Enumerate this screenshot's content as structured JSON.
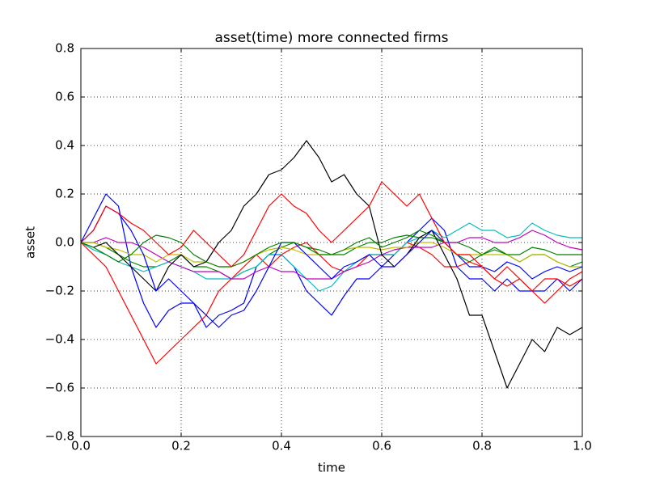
{
  "chart_data": {
    "type": "line",
    "title": "asset(time) more connected firms",
    "x_label": "time",
    "y_label": "asset",
    "x": [
      0,
      0.025,
      0.05,
      0.075,
      0.1,
      0.125,
      0.15,
      0.175,
      0.2,
      0.225,
      0.25,
      0.275,
      0.3,
      0.325,
      0.35,
      0.375,
      0.4,
      0.425,
      0.45,
      0.475,
      0.5,
      0.525,
      0.55,
      0.575,
      0.6,
      0.625,
      0.65,
      0.675,
      0.7,
      0.725,
      0.75,
      0.775,
      0.8,
      0.825,
      0.85,
      0.875,
      0.9,
      0.925,
      0.95,
      0.975,
      1
    ],
    "series": [
      {
        "color": "#0000ff",
        "values": [
          0,
          0.1,
          0.2,
          0.15,
          -0.1,
          -0.25,
          -0.35,
          -0.28,
          -0.25,
          -0.25,
          -0.35,
          -0.3,
          -0.28,
          -0.25,
          -0.1,
          -0.05,
          -0.05,
          -0.1,
          -0.2,
          -0.25,
          -0.3,
          -0.22,
          -0.15,
          -0.15,
          -0.1,
          -0.05,
          0,
          0.05,
          0.1,
          0.05,
          -0.1,
          -0.15,
          -0.15,
          -0.2,
          -0.15,
          -0.2,
          -0.2,
          -0.2,
          -0.15,
          -0.2,
          -0.15
        ]
      },
      {
        "color": "#008000",
        "values": [
          0,
          0,
          -0.02,
          -0.05,
          -0.08,
          -0.1,
          -0.1,
          -0.08,
          -0.05,
          -0.1,
          -0.1,
          -0.12,
          -0.15,
          -0.12,
          -0.1,
          -0.05,
          -0.02,
          0,
          -0.02,
          -0.03,
          -0.05,
          -0.05,
          -0.02,
          0,
          0,
          0.02,
          0.03,
          0.02,
          0.02,
          0,
          0,
          -0.02,
          -0.05,
          -0.03,
          -0.05,
          -0.08,
          -0.05,
          -0.05,
          -0.08,
          -0.1,
          -0.08
        ]
      },
      {
        "color": "#ff0000",
        "values": [
          0,
          -0.05,
          -0.1,
          -0.2,
          -0.3,
          -0.4,
          -0.5,
          -0.45,
          -0.4,
          -0.35,
          -0.3,
          -0.2,
          -0.15,
          -0.1,
          -0.05,
          -0.1,
          -0.05,
          -0.02,
          0,
          -0.05,
          -0.1,
          -0.12,
          -0.1,
          -0.05,
          -0.05,
          -0.05,
          0,
          -0.02,
          -0.05,
          -0.1,
          -0.1,
          -0.08,
          -0.1,
          -0.15,
          -0.18,
          -0.15,
          -0.2,
          -0.25,
          -0.2,
          -0.15,
          -0.12
        ]
      },
      {
        "color": "#00bfbf",
        "values": [
          0,
          -0.03,
          -0.05,
          -0.08,
          -0.1,
          -0.12,
          -0.1,
          -0.08,
          -0.1,
          -0.12,
          -0.15,
          -0.15,
          -0.15,
          -0.12,
          -0.1,
          -0.05,
          -0.05,
          -0.1,
          -0.15,
          -0.2,
          -0.18,
          -0.12,
          -0.08,
          -0.05,
          -0.05,
          -0.05,
          0,
          0.02,
          0.05,
          0.02,
          0.05,
          0.08,
          0.05,
          0.05,
          0.02,
          0.03,
          0.08,
          0.05,
          0.03,
          0.02,
          0.02
        ]
      },
      {
        "color": "#bf00bf",
        "values": [
          0,
          0,
          0.02,
          0,
          0,
          -0.02,
          -0.05,
          -0.08,
          -0.1,
          -0.12,
          -0.12,
          -0.12,
          -0.15,
          -0.15,
          -0.12,
          -0.1,
          -0.12,
          -0.12,
          -0.15,
          -0.15,
          -0.15,
          -0.12,
          -0.1,
          -0.08,
          -0.05,
          -0.03,
          -0.02,
          -0.02,
          -0.02,
          0,
          0,
          0.02,
          0.02,
          0,
          0,
          0.02,
          0.05,
          0.03,
          0,
          -0.02,
          -0.03
        ]
      },
      {
        "color": "#bfbf00",
        "values": [
          0,
          0,
          -0.02,
          -0.03,
          -0.05,
          -0.05,
          -0.08,
          -0.05,
          -0.05,
          -0.08,
          -0.08,
          -0.1,
          -0.1,
          -0.08,
          -0.05,
          -0.03,
          -0.02,
          -0.03,
          -0.05,
          -0.05,
          -0.05,
          -0.03,
          -0.02,
          -0.02,
          -0.03,
          -0.02,
          -0.02,
          0,
          0,
          -0.02,
          -0.05,
          -0.05,
          -0.05,
          -0.05,
          -0.05,
          -0.08,
          -0.05,
          -0.05,
          -0.08,
          -0.1,
          -0.1
        ]
      },
      {
        "color": "#000000",
        "values": [
          0,
          -0.02,
          0,
          -0.05,
          -0.1,
          -0.15,
          -0.2,
          -0.1,
          -0.05,
          -0.1,
          -0.08,
          0,
          0.05,
          0.15,
          0.2,
          0.28,
          0.3,
          0.35,
          0.42,
          0.35,
          0.25,
          0.28,
          0.2,
          0.15,
          -0.05,
          -0.1,
          -0.05,
          0.02,
          0.05,
          -0.05,
          -0.15,
          -0.3,
          -0.3,
          -0.45,
          -0.6,
          -0.5,
          -0.4,
          -0.45,
          -0.35,
          -0.38,
          -0.35
        ]
      },
      {
        "color": "#0000ff",
        "values": [
          0,
          0.05,
          0.15,
          0.12,
          0.05,
          -0.05,
          -0.2,
          -0.15,
          -0.2,
          -0.25,
          -0.3,
          -0.35,
          -0.3,
          -0.28,
          -0.2,
          -0.1,
          0,
          0,
          -0.05,
          -0.1,
          -0.15,
          -0.1,
          -0.08,
          -0.05,
          -0.1,
          -0.1,
          -0.05,
          0,
          0.05,
          0,
          -0.05,
          -0.1,
          -0.1,
          -0.12,
          -0.08,
          -0.1,
          -0.15,
          -0.12,
          -0.1,
          -0.12,
          -0.1
        ]
      },
      {
        "color": "#008000",
        "values": [
          0,
          -0.02,
          -0.05,
          -0.08,
          -0.05,
          0,
          0.03,
          0.02,
          0,
          -0.05,
          -0.08,
          -0.1,
          -0.1,
          -0.08,
          -0.05,
          -0.02,
          0,
          0,
          -0.02,
          -0.05,
          -0.05,
          -0.03,
          0,
          0.02,
          -0.02,
          0,
          0.02,
          0.05,
          0.03,
          0,
          -0.05,
          -0.08,
          -0.05,
          -0.02,
          -0.05,
          -0.05,
          -0.02,
          -0.03,
          -0.05,
          -0.05,
          -0.05
        ]
      },
      {
        "color": "#ff0000",
        "values": [
          0,
          0.05,
          0.15,
          0.12,
          0.08,
          0.05,
          0,
          -0.05,
          -0.02,
          0.05,
          0,
          -0.05,
          -0.1,
          -0.05,
          0.05,
          0.15,
          0.2,
          0.15,
          0.12,
          0.05,
          0,
          0.05,
          0.1,
          0.15,
          0.25,
          0.2,
          0.15,
          0.2,
          0.1,
          0,
          -0.05,
          -0.05,
          -0.1,
          -0.15,
          -0.1,
          -0.15,
          -0.2,
          -0.15,
          -0.15,
          -0.18,
          -0.15
        ]
      }
    ],
    "xlim": [
      0,
      1
    ],
    "xticks": [
      {
        "value": 0,
        "label": "0.0"
      },
      0.2,
      0.4,
      0.6,
      0.8,
      {
        "value": 1,
        "label": "1.0"
      }
    ],
    "ylim": [
      -0.8,
      0.8
    ],
    "yticks": [
      {
        "value": -0.8,
        "label": "−0.8"
      },
      {
        "value": -0.6,
        "label": "−0.6"
      },
      {
        "value": -0.4,
        "label": "−0.4"
      },
      {
        "value": -0.2,
        "label": "−0.2"
      },
      {
        "value": 0,
        "label": "0.0"
      },
      0.2,
      0.4,
      0.6,
      0.8
    ],
    "grid": true
  }
}
